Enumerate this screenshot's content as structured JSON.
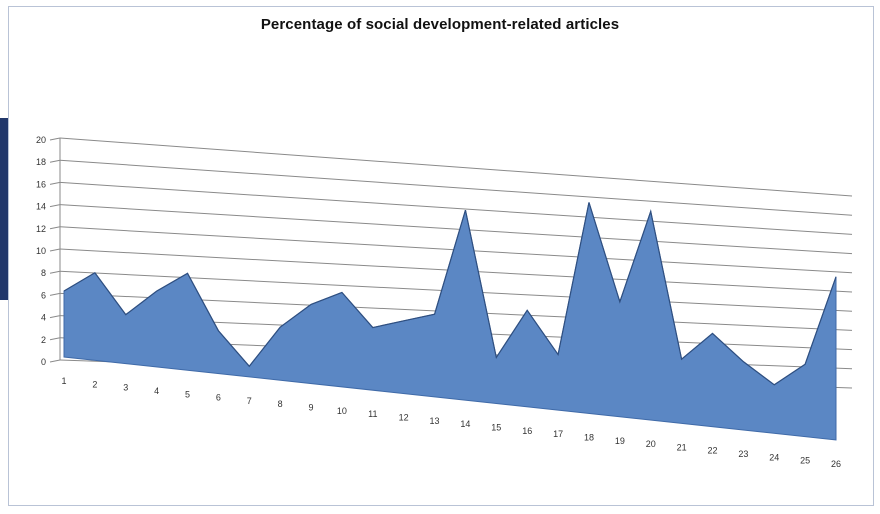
{
  "chart_data": {
    "type": "area",
    "title": "Percentage of social development-related articles",
    "xlabel": "",
    "ylabel": "",
    "categories": [
      "1",
      "2",
      "3",
      "4",
      "5",
      "6",
      "7",
      "8",
      "9",
      "10",
      "11",
      "12",
      "13",
      "14",
      "15",
      "16",
      "17",
      "18",
      "19",
      "20",
      "21",
      "22",
      "23",
      "24",
      "25",
      "26"
    ],
    "series": [
      {
        "values": [
          6,
          8,
          4.5,
          7,
          9,
          4,
          1,
          5,
          7.5,
          9,
          6,
          7,
          8,
          18.5,
          4.5,
          9.5,
          5.5,
          21,
          11.5,
          21,
          6.5,
          9.5,
          7,
          5,
          7.5,
          17
        ]
      }
    ],
    "ylim": [
      0,
      20
    ],
    "yticks": [
      "0",
      "2",
      "4",
      "6",
      "8",
      "10",
      "12",
      "14",
      "16",
      "18",
      "20"
    ],
    "grid": true,
    "legend": "none",
    "fill_color": "#5b87c4",
    "edge_color": "#3f6aa8",
    "grid_color": "#8a8a8a"
  }
}
